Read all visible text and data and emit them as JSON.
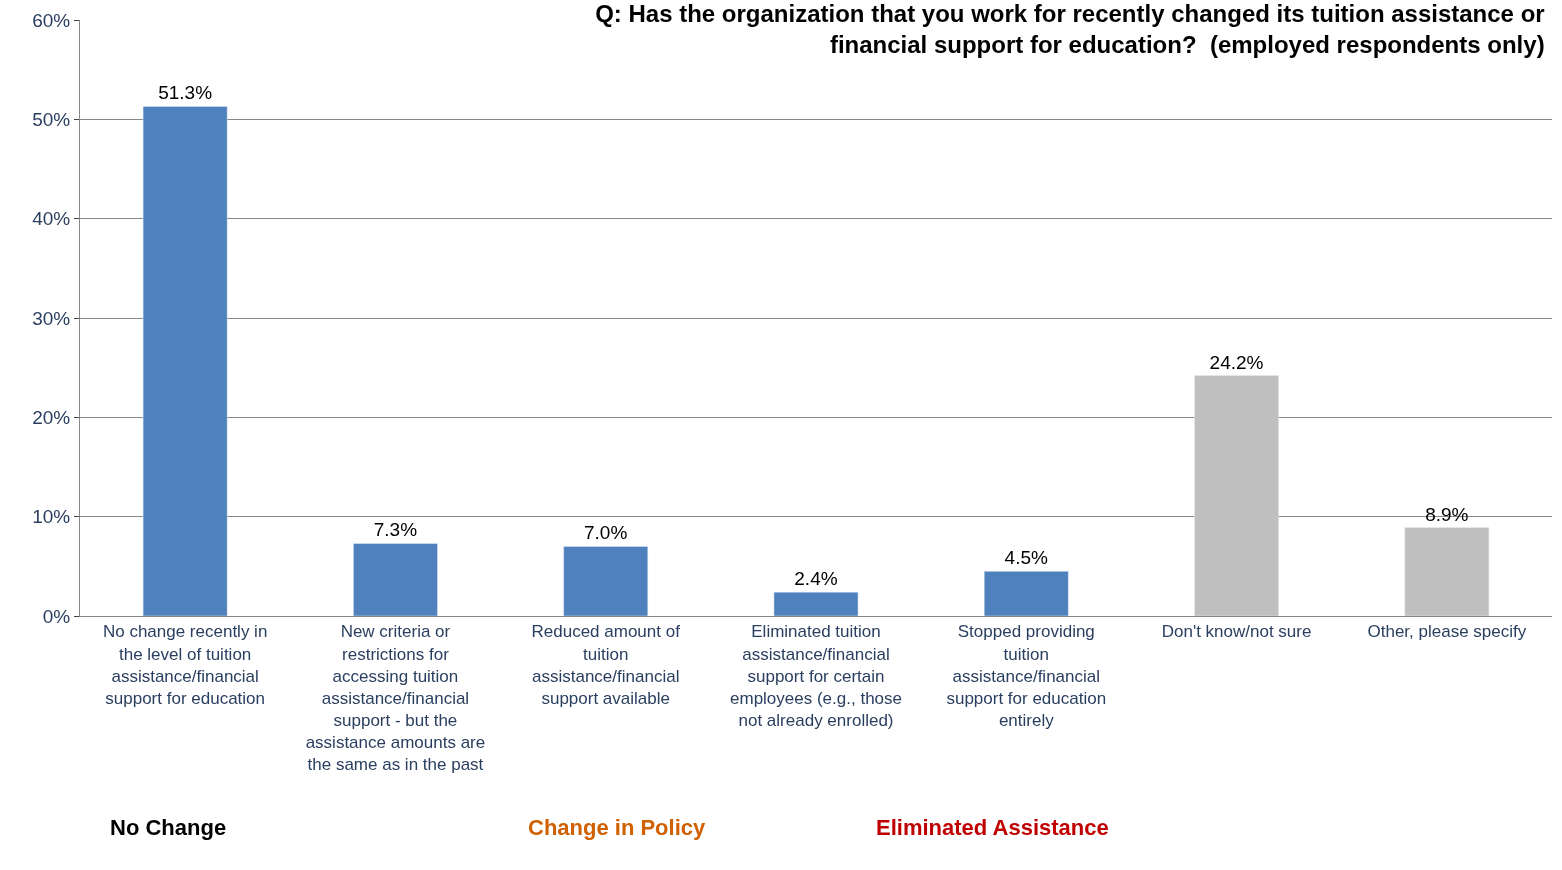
{
  "chart_data": {
    "type": "bar",
    "title": "Q: Has the organization that you work for recently changed its tuition assistance or financial support for education?  (employed respondents only)",
    "categories": [
      "No change recently in the level of tuition assistance/financial support for education",
      "New criteria or restrictions for accessing tuition assistance/financial support - but the assistance amounts are the same as in the past",
      "Reduced amount of tuition assistance/financial support available",
      "Eliminated tuition assistance/financial support for certain employees (e.g., those not already enrolled)",
      "Stopped providing tuition assistance/financial support for education entirely",
      "Don't know/not sure",
      "Other, please specify"
    ],
    "values": [
      51.3,
      7.3,
      7.0,
      2.4,
      4.5,
      24.2,
      8.9
    ],
    "colors": [
      "#4f81bd",
      "#4f81bd",
      "#4f81bd",
      "#4f81bd",
      "#4f81bd",
      "#bfbfbf",
      "#bfbfbf"
    ],
    "value_labels": [
      "51.3%",
      "7.3%",
      "7.0%",
      "2.4%",
      "4.5%",
      "24.2%",
      "8.9%"
    ],
    "ylim": [
      0,
      60
    ],
    "yticks": [
      {
        "value": 0,
        "label": "0%"
      },
      {
        "value": 10,
        "label": "10%"
      },
      {
        "value": 20,
        "label": "20%"
      },
      {
        "value": 30,
        "label": "30%"
      },
      {
        "value": 40,
        "label": "40%"
      },
      {
        "value": 50,
        "label": "50%"
      },
      {
        "value": 60,
        "label": "60%"
      }
    ],
    "grid": "y",
    "legend": false,
    "annotations": [
      "No Change",
      "Change in Policy",
      "Eliminated Assistance"
    ]
  }
}
